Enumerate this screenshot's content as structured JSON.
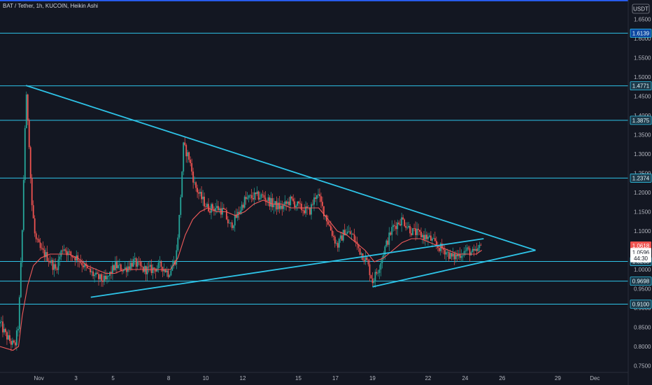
{
  "header": {
    "title": "BAT / Tether, 1h, KUCOIN, Heikin Ashi",
    "currency_badge": "USDT"
  },
  "colors": {
    "background": "#131722",
    "hline": "#2ec4e8",
    "hline_top": "#2962ff",
    "trendline": "#2ec4e8",
    "ma": "#f05a5a",
    "candle_up": "#26a69a",
    "candle_down": "#ef5350",
    "axis_text": "#b2b5be"
  },
  "chart_data": {
    "type": "candlestick",
    "price_axis": {
      "ylim": [
        0.7,
        1.7
      ],
      "ticks": [
        "1.6500",
        "1.6000",
        "1.5500",
        "1.5000",
        "1.4500",
        "1.4000",
        "1.3500",
        "1.3000",
        "1.2500",
        "1.2000",
        "1.1500",
        "1.1000",
        "1.0500",
        "1.0000",
        "0.9500",
        "0.9000",
        "0.8500",
        "0.8000",
        "0.7500"
      ]
    },
    "time_axis": {
      "xlim": [
        -1.2,
        32.7
      ],
      "ticks": [
        {
          "label": "Nov",
          "x": 0.9
        },
        {
          "label": "3",
          "x": 2.9
        },
        {
          "label": "5",
          "x": 4.9
        },
        {
          "label": "8",
          "x": 7.9
        },
        {
          "label": "10",
          "x": 9.9
        },
        {
          "label": "12",
          "x": 11.9
        },
        {
          "label": "15",
          "x": 14.9
        },
        {
          "label": "17",
          "x": 16.9
        },
        {
          "label": "19",
          "x": 18.9
        },
        {
          "label": "22",
          "x": 21.9
        },
        {
          "label": "24",
          "x": 23.9
        },
        {
          "label": "26",
          "x": 25.9
        },
        {
          "label": "29",
          "x": 28.9
        },
        {
          "label": "Dec",
          "x": 30.9
        }
      ]
    },
    "horizontal_levels": [
      {
        "value": 1.699,
        "label": "",
        "top": true
      },
      {
        "value": 1.6139,
        "label": "1.6139"
      },
      {
        "value": 1.4771,
        "label": "1.4771"
      },
      {
        "value": 1.3875,
        "label": "1.3875"
      },
      {
        "value": 1.2374,
        "label": "1.2374"
      },
      {
        "value": 1.0208,
        "label": "1.0208"
      },
      {
        "value": 0.9698,
        "label": "0.9698"
      },
      {
        "value": 0.91,
        "label": "0.9100"
      }
    ],
    "trendlines": [
      {
        "x1": 0.2,
        "y1": 1.478,
        "x2": 27.7,
        "y2": 1.05
      },
      {
        "x1": 3.7,
        "y1": 0.928,
        "x2": 24.9,
        "y2": 1.08
      },
      {
        "x1": 18.9,
        "y1": 0.955,
        "x2": 27.7,
        "y2": 1.05
      }
    ],
    "price_badges": [
      {
        "label": "1.0618",
        "value": 1.0618,
        "color": "#ef5350"
      },
      {
        "label": "1.0596",
        "value": 1.045,
        "color": "#ffffff"
      },
      {
        "label": "44:30",
        "value": 1.0295,
        "color": "#ffffff"
      }
    ],
    "price_path": [
      [
        -1.2,
        0.86
      ],
      [
        -0.9,
        0.83
      ],
      [
        -0.6,
        0.81
      ],
      [
        -0.4,
        0.8
      ],
      [
        -0.2,
        0.86
      ],
      [
        0.0,
        1.1
      ],
      [
        0.2,
        1.46
      ],
      [
        0.35,
        1.36
      ],
      [
        0.5,
        1.18
      ],
      [
        0.7,
        1.08
      ],
      [
        1.0,
        1.05
      ],
      [
        1.4,
        1.03
      ],
      [
        1.8,
        1.0
      ],
      [
        2.2,
        1.06
      ],
      [
        2.5,
        1.04
      ],
      [
        3.0,
        1.03
      ],
      [
        3.5,
        1.0
      ],
      [
        4.0,
        0.98
      ],
      [
        4.5,
        0.97
      ],
      [
        5.0,
        1.01
      ],
      [
        5.5,
        1.0
      ],
      [
        6.0,
        1.02
      ],
      [
        6.5,
        1.0
      ],
      [
        7.0,
        1.0
      ],
      [
        7.5,
        1.01
      ],
      [
        7.9,
        0.99
      ],
      [
        8.3,
        1.03
      ],
      [
        8.5,
        1.15
      ],
      [
        8.7,
        1.32
      ],
      [
        9.0,
        1.29
      ],
      [
        9.3,
        1.22
      ],
      [
        9.6,
        1.19
      ],
      [
        10.0,
        1.16
      ],
      [
        10.5,
        1.16
      ],
      [
        10.9,
        1.15
      ],
      [
        11.2,
        1.11
      ],
      [
        11.6,
        1.14
      ],
      [
        12.0,
        1.18
      ],
      [
        12.5,
        1.19
      ],
      [
        13.0,
        1.19
      ],
      [
        13.5,
        1.17
      ],
      [
        14.0,
        1.16
      ],
      [
        14.5,
        1.18
      ],
      [
        15.0,
        1.16
      ],
      [
        15.5,
        1.15
      ],
      [
        15.9,
        1.2
      ],
      [
        16.2,
        1.16
      ],
      [
        16.6,
        1.11
      ],
      [
        17.0,
        1.06
      ],
      [
        17.4,
        1.1
      ],
      [
        17.8,
        1.09
      ],
      [
        18.2,
        1.05
      ],
      [
        18.6,
        1.02
      ],
      [
        18.9,
        0.97
      ],
      [
        19.2,
        1.0
      ],
      [
        19.6,
        1.06
      ],
      [
        20.0,
        1.11
      ],
      [
        20.5,
        1.13
      ],
      [
        21.0,
        1.1
      ],
      [
        21.5,
        1.09
      ],
      [
        22.0,
        1.08
      ],
      [
        22.4,
        1.06
      ],
      [
        22.8,
        1.05
      ],
      [
        23.2,
        1.03
      ],
      [
        23.6,
        1.04
      ],
      [
        24.0,
        1.05
      ],
      [
        24.4,
        1.04
      ],
      [
        24.8,
        1.062
      ]
    ],
    "ma_path": [
      [
        -1.2,
        0.8
      ],
      [
        -0.5,
        0.79
      ],
      [
        -0.2,
        0.8
      ],
      [
        0.0,
        0.88
      ],
      [
        0.3,
        0.96
      ],
      [
        0.6,
        1.01
      ],
      [
        1.0,
        1.03
      ],
      [
        1.5,
        1.04
      ],
      [
        2.0,
        1.04
      ],
      [
        2.5,
        1.04
      ],
      [
        3.0,
        1.03
      ],
      [
        3.5,
        1.01
      ],
      [
        4.0,
        1.0
      ],
      [
        4.5,
        0.99
      ],
      [
        5.0,
        0.99
      ],
      [
        5.5,
        1.0
      ],
      [
        6.0,
        1.0
      ],
      [
        6.5,
        1.0
      ],
      [
        7.0,
        1.0
      ],
      [
        7.5,
        1.0
      ],
      [
        8.0,
        1.0
      ],
      [
        8.4,
        1.03
      ],
      [
        8.8,
        1.09
      ],
      [
        9.2,
        1.13
      ],
      [
        9.6,
        1.15
      ],
      [
        10.0,
        1.16
      ],
      [
        10.5,
        1.15
      ],
      [
        11.0,
        1.15
      ],
      [
        11.5,
        1.14
      ],
      [
        12.0,
        1.15
      ],
      [
        12.5,
        1.17
      ],
      [
        13.0,
        1.18
      ],
      [
        13.5,
        1.17
      ],
      [
        14.0,
        1.17
      ],
      [
        14.5,
        1.16
      ],
      [
        15.0,
        1.16
      ],
      [
        15.5,
        1.16
      ],
      [
        16.0,
        1.16
      ],
      [
        16.5,
        1.13
      ],
      [
        17.0,
        1.1
      ],
      [
        17.5,
        1.09
      ],
      [
        18.0,
        1.07
      ],
      [
        18.5,
        1.05
      ],
      [
        19.0,
        1.02
      ],
      [
        19.5,
        1.03
      ],
      [
        20.0,
        1.05
      ],
      [
        20.5,
        1.07
      ],
      [
        21.0,
        1.08
      ],
      [
        21.5,
        1.08
      ],
      [
        22.0,
        1.07
      ],
      [
        22.5,
        1.06
      ],
      [
        23.0,
        1.05
      ],
      [
        23.5,
        1.04
      ],
      [
        24.0,
        1.04
      ],
      [
        24.5,
        1.04
      ],
      [
        24.8,
        1.05
      ]
    ]
  }
}
